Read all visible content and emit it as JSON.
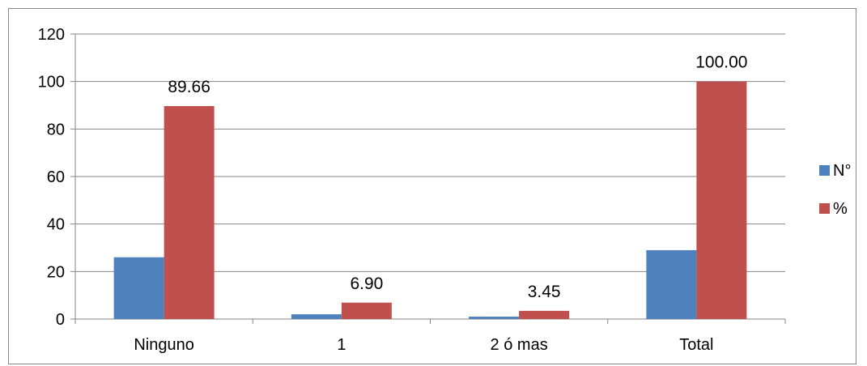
{
  "chart_data": {
    "type": "bar",
    "title": "",
    "xlabel": "",
    "ylabel": "",
    "categories": [
      "Ninguno",
      "1",
      "2 ó mas",
      "Total"
    ],
    "series": [
      {
        "name": "N°",
        "values": [
          26,
          2,
          1,
          29
        ],
        "color": "#4F81BD",
        "labels": [
          null,
          null,
          null,
          null
        ]
      },
      {
        "name": "%",
        "values": [
          89.66,
          6.9,
          3.45,
          100.0
        ],
        "color": "#C0504D",
        "labels": [
          "89.66",
          "6.90",
          "3.45",
          "100.00"
        ]
      }
    ],
    "ylim": [
      0,
      120
    ],
    "yticks": [
      0,
      20,
      40,
      60,
      80,
      100,
      120
    ],
    "grid": true,
    "legend_position": "right"
  }
}
